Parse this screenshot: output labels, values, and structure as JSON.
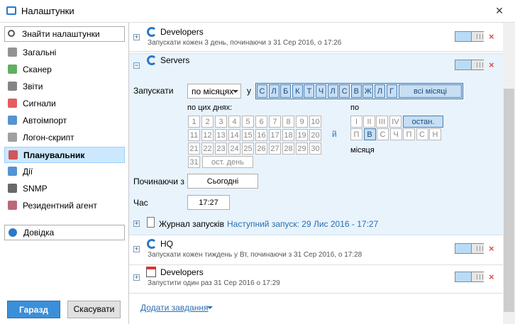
{
  "header": {
    "title": "Налаштунки"
  },
  "sidebar": {
    "search_placeholder": "Знайти налаштунки",
    "items": [
      "Загальні",
      "Сканер",
      "Звіти",
      "Сигнали",
      "Автоімпорт",
      "Логон-скрипт",
      "Планувальник",
      "Дії",
      "SNMP",
      "Резидентний агент"
    ],
    "help": "Довідка",
    "ok": "Гаразд",
    "cancel": "Скасувати"
  },
  "tasks": [
    {
      "name": "Developers",
      "subtitle": "Запускати кожен 3 день, починаючи з 31 Сер 2016, о 17:26"
    },
    {
      "name": "Servers"
    },
    {
      "name": "HQ",
      "subtitle": "Запускати кожен тиждень у Вт, починаючи з 31 Сер 2016, о 17:28"
    },
    {
      "name": "Developers",
      "subtitle": "Запустити один раз 31 Сер 2016 о 17:29"
    }
  ],
  "schedule": {
    "run_label": "Запускати",
    "frequency": "по місяцях",
    "in_label": "у",
    "months": [
      "С",
      "Л",
      "Б",
      "К",
      "Т",
      "Ч",
      "Л",
      "С",
      "В",
      "Ж",
      "Л",
      "Г"
    ],
    "all_months": "всі місяці",
    "days_label": "по цих днях:",
    "days": [
      1,
      2,
      3,
      4,
      5,
      6,
      7,
      8,
      9,
      10,
      11,
      12,
      13,
      14,
      15,
      16,
      17,
      18,
      19,
      20,
      21,
      22,
      23,
      24,
      25,
      26,
      27,
      28,
      29,
      30,
      31
    ],
    "last_day": "ост. день",
    "and_label": "й",
    "by_label": "по",
    "weeks": [
      "I",
      "II",
      "III",
      "IV",
      "остан."
    ],
    "weekdays": [
      "П",
      "В",
      "С",
      "Ч",
      "П",
      "С",
      "Н"
    ],
    "month_label": "місяця",
    "start_label": "Починаючи з",
    "start_value": "Сьогодні",
    "time_label": "Час",
    "time_value": "17:27",
    "log_label": "Журнал запусків",
    "next_run": "Наступний запуск: 29 Лис 2016 - 17:27"
  },
  "footer": {
    "add_task": "Додати завдання"
  }
}
